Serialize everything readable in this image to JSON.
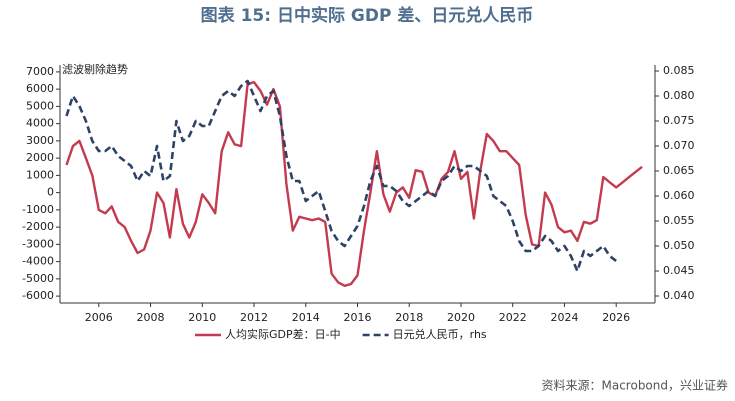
{
  "chart_data": {
    "type": "line",
    "title": "图表 15: 日中实际 GDP 差、日元兑人民币",
    "annotation": "滤波剔除趋势",
    "source": "资料来源：Macrobond，兴业证券",
    "x": [
      2004.75,
      2005,
      2005.25,
      2005.5,
      2005.75,
      2006,
      2006.25,
      2006.5,
      2006.75,
      2007,
      2007.25,
      2007.5,
      2007.75,
      2008,
      2008.25,
      2008.5,
      2008.75,
      2009,
      2009.25,
      2009.5,
      2009.75,
      2010,
      2010.25,
      2010.5,
      2010.75,
      2011,
      2011.25,
      2011.5,
      2011.75,
      2012,
      2012.25,
      2012.5,
      2012.75,
      2013,
      2013.25,
      2013.5,
      2013.75,
      2014,
      2014.25,
      2014.5,
      2014.75,
      2015,
      2015.25,
      2015.5,
      2015.75,
      2016,
      2016.25,
      2016.5,
      2016.75,
      2017,
      2017.25,
      2017.5,
      2017.75,
      2018,
      2018.25,
      2018.5,
      2018.75,
      2019,
      2019.25,
      2019.5,
      2019.75,
      2020,
      2020.25,
      2020.5,
      2020.75,
      2021,
      2021.25,
      2021.5,
      2021.75,
      2022,
      2022.25,
      2022.5,
      2022.75,
      2023,
      2023.25,
      2023.5,
      2023.75,
      2024,
      2024.25,
      2024.5,
      2024.75,
      2025,
      2025.25,
      2025.5,
      2025.75,
      2026,
      2026.25,
      2026.5,
      2026.75,
      2027
    ],
    "series": [
      {
        "name": "人均实际GDP差：日-中",
        "color": "#c43a4e",
        "axis": "y",
        "values": [
          1600,
          2700,
          3000,
          2000,
          1000,
          -1000,
          -1200,
          -800,
          -1700,
          -2000,
          -2800,
          -3500,
          -3300,
          -2200,
          0,
          -600,
          -2600,
          200,
          -1800,
          -2600,
          -1700,
          -100,
          -600,
          -1200,
          2400,
          3500,
          2800,
          2700,
          6300,
          6400,
          5900,
          5100,
          6000,
          5000,
          500,
          -2200,
          -1400,
          -1500,
          -1600,
          -1500,
          -1700,
          -4700,
          -5200,
          -5400,
          -5300,
          -4800,
          -2200,
          0,
          2400,
          -100,
          -1100,
          0,
          300,
          -300,
          1300,
          1200,
          0,
          -200,
          800,
          1200,
          2400,
          800,
          1200,
          -1500,
          1300,
          3400,
          3000,
          2400,
          2400,
          2000,
          1600,
          -1300,
          -3000,
          -3100,
          0,
          -700,
          -2000,
          -2300,
          -2200,
          -2800,
          -1700,
          -1800,
          -1600,
          900,
          600,
          300,
          600,
          900,
          1200,
          1500
        ]
      },
      {
        "name": "日元兑人民币，rhs",
        "color": "#2e4266",
        "axis": "y2",
        "dashed": true,
        "values": [
          0.076,
          0.08,
          0.078,
          0.075,
          0.071,
          0.069,
          0.069,
          0.07,
          0.068,
          0.067,
          0.066,
          0.063,
          0.065,
          0.064,
          0.07,
          0.063,
          0.064,
          0.075,
          0.071,
          0.072,
          0.075,
          0.074,
          0.074,
          0.077,
          0.08,
          0.081,
          0.08,
          0.082,
          0.083,
          0.08,
          0.077,
          0.08,
          0.081,
          0.076,
          0.068,
          0.063,
          0.063,
          0.059,
          0.06,
          0.061,
          0.057,
          0.053,
          0.051,
          0.05,
          0.052,
          0.054,
          0.058,
          0.063,
          0.066,
          0.062,
          0.062,
          0.061,
          0.059,
          0.058,
          0.059,
          0.06,
          0.061,
          0.06,
          0.063,
          0.064,
          0.066,
          0.065,
          0.066,
          0.066,
          0.065,
          0.064,
          0.06,
          0.059,
          0.058,
          0.055,
          0.051,
          0.049,
          0.049,
          0.05,
          0.052,
          0.051,
          0.049,
          0.05,
          0.048,
          0.045,
          0.049,
          0.048,
          0.049,
          0.05,
          0.048,
          0.047,
          null,
          null,
          null,
          null
        ]
      }
    ],
    "xlim": [
      2004.5,
      2027.5
    ],
    "xticks": [
      2006,
      2008,
      2010,
      2012,
      2014,
      2016,
      2018,
      2020,
      2022,
      2024,
      2026
    ],
    "ylim": [
      -6400,
      7400
    ],
    "yticks": [
      -6000,
      -5000,
      -4000,
      -3000,
      -2000,
      -1000,
      0,
      1000,
      2000,
      3000,
      4000,
      5000,
      6000,
      7000
    ],
    "y2lim": [
      0.0386,
      0.0862
    ],
    "y2ticks": [
      {
        "value": 0.04,
        "label": "0.040"
      },
      {
        "value": 0.045,
        "label": "0.045"
      },
      {
        "value": 0.05,
        "label": "0.050"
      },
      {
        "value": 0.055,
        "label": "0.055"
      },
      {
        "value": 0.06,
        "label": "0.060"
      },
      {
        "value": 0.065,
        "label": "0.065"
      },
      {
        "value": 0.07,
        "label": "0.070"
      },
      {
        "value": 0.075,
        "label": "0.075"
      },
      {
        "value": 0.08,
        "label": "0.080"
      },
      {
        "value": 0.085,
        "label": "0.085"
      }
    ],
    "legend": "bottom"
  }
}
